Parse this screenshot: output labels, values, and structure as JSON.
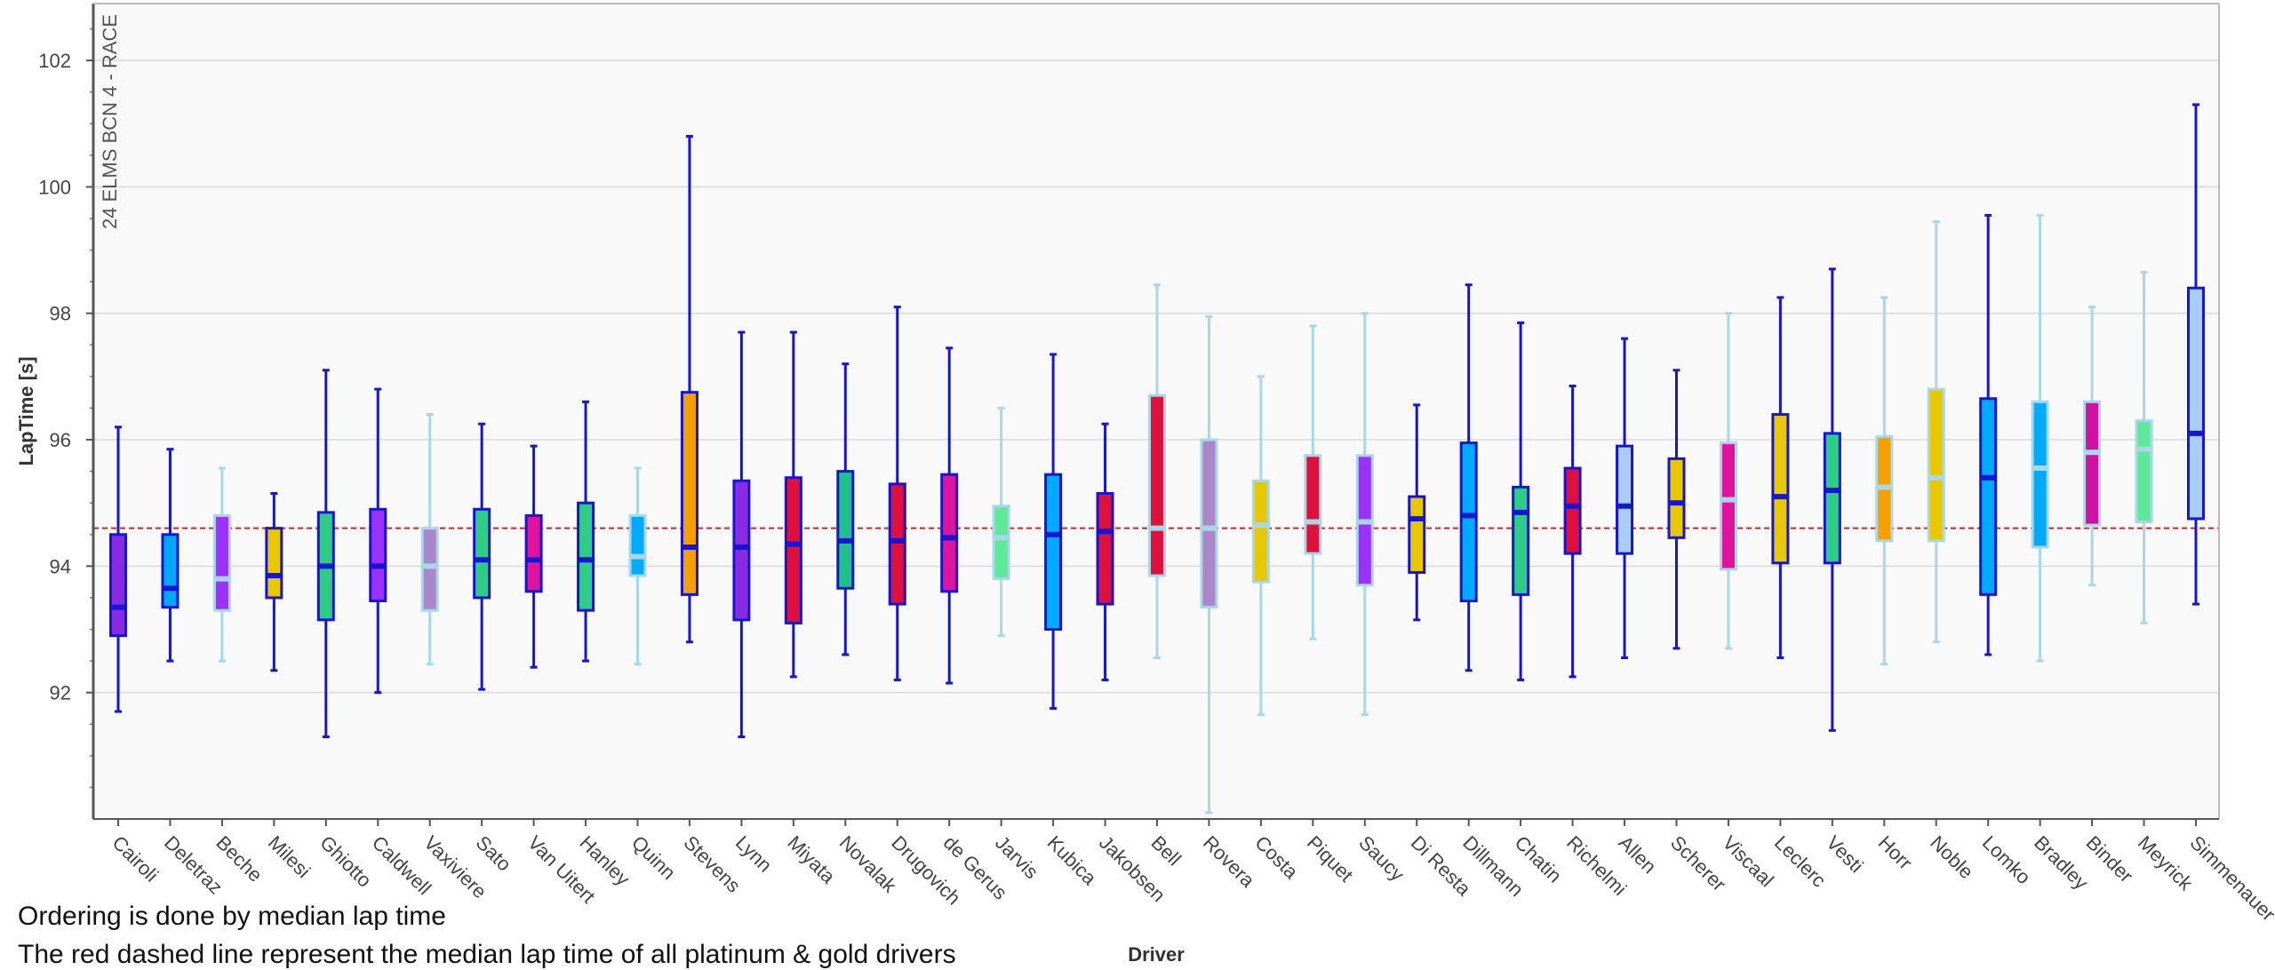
{
  "notes": [
    "Ordering is done by median lap time",
    "The red dashed line represent the median lap time of all platinum & gold drivers"
  ],
  "colors": {
    "plot_background": "#f9f9f9",
    "grid": "#d9d9d9",
    "reference_line": "#e0201e",
    "whisker_dark": "#1515d6",
    "whisker_light": "#a8d8e8"
  },
  "chart_data": {
    "type": "box",
    "title": "24 ELMS BCN 4 - RACE",
    "xlabel": "Driver",
    "ylabel": "LapTime [s]",
    "ylim": [
      90,
      102.9
    ],
    "yticks": [
      92,
      94,
      96,
      98,
      100,
      102
    ],
    "grid": true,
    "reference_line": {
      "value": 94.6,
      "style": "dashed",
      "color": "#e0201e"
    },
    "boxes": [
      {
        "driver": "Cairoli",
        "min": 91.7,
        "q1": 92.9,
        "median": 93.35,
        "q3": 94.5,
        "max": 96.2,
        "fill": "#8a2be2",
        "edge": "dark"
      },
      {
        "driver": "Deletraz",
        "min": 92.5,
        "q1": 93.35,
        "median": 93.65,
        "q3": 94.5,
        "max": 95.85,
        "fill": "#00aaff",
        "edge": "dark"
      },
      {
        "driver": "Beche",
        "min": 92.5,
        "q1": 93.3,
        "median": 93.8,
        "q3": 94.8,
        "max": 95.55,
        "fill": "#9b30ff",
        "edge": "light"
      },
      {
        "driver": "Milesi",
        "min": 92.35,
        "q1": 93.5,
        "median": 93.85,
        "q3": 94.6,
        "max": 95.15,
        "fill": "#e8c800",
        "edge": "dark"
      },
      {
        "driver": "Ghiotto",
        "min": 91.3,
        "q1": 93.15,
        "median": 94.0,
        "q3": 94.85,
        "max": 97.1,
        "fill": "#2ecc85",
        "edge": "dark"
      },
      {
        "driver": "Caldwell",
        "min": 92.0,
        "q1": 93.45,
        "median": 94.0,
        "q3": 94.9,
        "max": 96.8,
        "fill": "#9b30ff",
        "edge": "dark"
      },
      {
        "driver": "Vaxiviere",
        "min": 92.45,
        "q1": 93.3,
        "median": 94.0,
        "q3": 94.6,
        "max": 96.4,
        "fill": "#a987c9",
        "edge": "light"
      },
      {
        "driver": "Sato",
        "min": 92.05,
        "q1": 93.5,
        "median": 94.1,
        "q3": 94.9,
        "max": 96.25,
        "fill": "#2ecc85",
        "edge": "dark"
      },
      {
        "driver": "Van Uitert",
        "min": 92.4,
        "q1": 93.6,
        "median": 94.1,
        "q3": 94.8,
        "max": 95.9,
        "fill": "#e0139c",
        "edge": "dark"
      },
      {
        "driver": "Hanley",
        "min": 92.5,
        "q1": 93.3,
        "median": 94.1,
        "q3": 95.0,
        "max": 96.6,
        "fill": "#2ecc85",
        "edge": "dark"
      },
      {
        "driver": "Quinn",
        "min": 92.45,
        "q1": 93.85,
        "median": 94.15,
        "q3": 94.8,
        "max": 95.55,
        "fill": "#00aaff",
        "edge": "light"
      },
      {
        "driver": "Stevens",
        "min": 92.8,
        "q1": 93.55,
        "median": 94.3,
        "q3": 96.75,
        "max": 100.8,
        "fill": "#f5a000",
        "edge": "dark"
      },
      {
        "driver": "Lynn",
        "min": 91.3,
        "q1": 93.15,
        "median": 94.3,
        "q3": 95.35,
        "max": 97.7,
        "fill": "#8a2be2",
        "edge": "dark"
      },
      {
        "driver": "Miyata",
        "min": 92.25,
        "q1": 93.1,
        "median": 94.35,
        "q3": 95.4,
        "max": 97.7,
        "fill": "#e0103c",
        "edge": "dark"
      },
      {
        "driver": "Novalak",
        "min": 92.6,
        "q1": 93.65,
        "median": 94.4,
        "q3": 95.5,
        "max": 97.2,
        "fill": "#20c08a",
        "edge": "dark"
      },
      {
        "driver": "Drugovich",
        "min": 92.2,
        "q1": 93.4,
        "median": 94.4,
        "q3": 95.3,
        "max": 98.1,
        "fill": "#e0103c",
        "edge": "dark"
      },
      {
        "driver": "de Gerus",
        "min": 92.15,
        "q1": 93.6,
        "median": 94.45,
        "q3": 95.45,
        "max": 97.45,
        "fill": "#e0139c",
        "edge": "dark"
      },
      {
        "driver": "Jarvis",
        "min": 92.9,
        "q1": 93.8,
        "median": 94.45,
        "q3": 94.95,
        "max": 96.5,
        "fill": "#5ee89a",
        "edge": "light"
      },
      {
        "driver": "Kubica",
        "min": 91.75,
        "q1": 93.0,
        "median": 94.5,
        "q3": 95.45,
        "max": 97.35,
        "fill": "#00aaff",
        "edge": "dark"
      },
      {
        "driver": "Jakobsen",
        "min": 92.2,
        "q1": 93.4,
        "median": 94.55,
        "q3": 95.15,
        "max": 96.25,
        "fill": "#e0103c",
        "edge": "dark"
      },
      {
        "driver": "Bell",
        "min": 92.55,
        "q1": 93.85,
        "median": 94.6,
        "q3": 96.7,
        "max": 98.45,
        "fill": "#e0103c",
        "edge": "light"
      },
      {
        "driver": "Rovera",
        "min": 90.1,
        "q1": 93.35,
        "median": 94.6,
        "q3": 96.0,
        "max": 97.95,
        "fill": "#a987c9",
        "edge": "light"
      },
      {
        "driver": "Costa",
        "min": 91.65,
        "q1": 93.75,
        "median": 94.65,
        "q3": 95.35,
        "max": 97.0,
        "fill": "#e8c800",
        "edge": "light"
      },
      {
        "driver": "Piquet",
        "min": 92.85,
        "q1": 94.2,
        "median": 94.7,
        "q3": 95.75,
        "max": 97.8,
        "fill": "#e0103c",
        "edge": "light"
      },
      {
        "driver": "Saucy",
        "min": 91.65,
        "q1": 93.7,
        "median": 94.7,
        "q3": 95.75,
        "max": 98.0,
        "fill": "#9b30ff",
        "edge": "light"
      },
      {
        "driver": "Di Resta",
        "min": 93.15,
        "q1": 93.9,
        "median": 94.75,
        "q3": 95.1,
        "max": 96.55,
        "fill": "#e8c800",
        "edge": "dark"
      },
      {
        "driver": "Dillmann",
        "min": 92.35,
        "q1": 93.45,
        "median": 94.8,
        "q3": 95.95,
        "max": 98.45,
        "fill": "#00aaff",
        "edge": "dark"
      },
      {
        "driver": "Chatin",
        "min": 92.2,
        "q1": 93.55,
        "median": 94.85,
        "q3": 95.25,
        "max": 97.85,
        "fill": "#2ecc85",
        "edge": "dark"
      },
      {
        "driver": "Richelmi",
        "min": 92.25,
        "q1": 94.2,
        "median": 94.95,
        "q3": 95.55,
        "max": 96.85,
        "fill": "#e0103c",
        "edge": "dark"
      },
      {
        "driver": "Allen",
        "min": 92.55,
        "q1": 94.2,
        "median": 94.95,
        "q3": 95.9,
        "max": 97.6,
        "fill": "#a9cdf5",
        "edge": "dark"
      },
      {
        "driver": "Scherer",
        "min": 92.7,
        "q1": 94.45,
        "median": 95.0,
        "q3": 95.7,
        "max": 97.1,
        "fill": "#e8c800",
        "edge": "dark"
      },
      {
        "driver": "Viscaal",
        "min": 92.7,
        "q1": 93.95,
        "median": 95.05,
        "q3": 95.95,
        "max": 98.0,
        "fill": "#e0139c",
        "edge": "light"
      },
      {
        "driver": "Leclerc",
        "min": 92.55,
        "q1": 94.05,
        "median": 95.1,
        "q3": 96.4,
        "max": 98.25,
        "fill": "#e8c800",
        "edge": "dark"
      },
      {
        "driver": "Vesti",
        "min": 91.4,
        "q1": 94.05,
        "median": 95.2,
        "q3": 96.1,
        "max": 98.7,
        "fill": "#2ecc85",
        "edge": "dark"
      },
      {
        "driver": "Horr",
        "min": 92.45,
        "q1": 94.4,
        "median": 95.25,
        "q3": 96.05,
        "max": 98.25,
        "fill": "#f5a000",
        "edge": "light"
      },
      {
        "driver": "Noble",
        "min": 92.8,
        "q1": 94.4,
        "median": 95.4,
        "q3": 96.8,
        "max": 99.45,
        "fill": "#e8c800",
        "edge": "light"
      },
      {
        "driver": "Lomko",
        "min": 92.6,
        "q1": 93.55,
        "median": 95.4,
        "q3": 96.65,
        "max": 99.55,
        "fill": "#00aaff",
        "edge": "dark"
      },
      {
        "driver": "Bradley",
        "min": 92.5,
        "q1": 94.3,
        "median": 95.55,
        "q3": 96.6,
        "max": 99.55,
        "fill": "#00aaff",
        "edge": "light"
      },
      {
        "driver": "Binder",
        "min": 93.7,
        "q1": 94.65,
        "median": 95.8,
        "q3": 96.6,
        "max": 98.1,
        "fill": "#d010a0",
        "edge": "light"
      },
      {
        "driver": "Meyrick",
        "min": 93.1,
        "q1": 94.7,
        "median": 95.85,
        "q3": 96.3,
        "max": 98.65,
        "fill": "#5ee89a",
        "edge": "light"
      },
      {
        "driver": "Simmenauer",
        "min": 93.4,
        "q1": 94.75,
        "median": 96.1,
        "q3": 98.4,
        "max": 101.3,
        "fill": "#a9cdf5",
        "edge": "dark"
      }
    ]
  }
}
